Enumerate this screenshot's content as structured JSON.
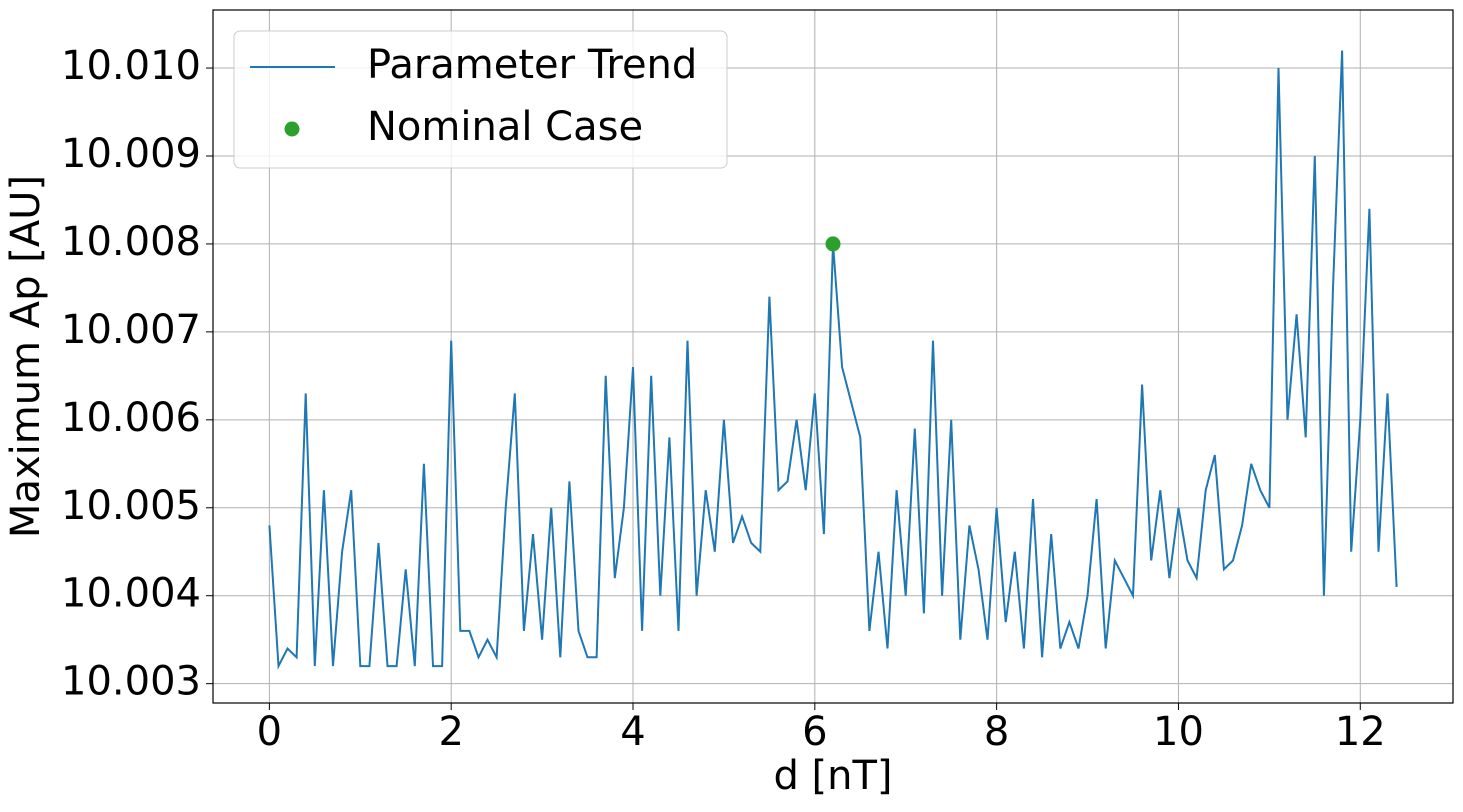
{
  "chart_data": {
    "type": "line",
    "xlabel": "d [nT]",
    "ylabel": "Maximum Ap [AU]",
    "x": [
      0.0,
      0.1,
      0.2,
      0.3,
      0.4,
      0.5,
      0.6,
      0.7,
      0.8,
      0.9,
      1.0,
      1.1,
      1.2,
      1.3,
      1.4,
      1.5,
      1.6,
      1.7,
      1.8,
      1.9,
      2.0,
      2.1,
      2.2,
      2.3,
      2.4,
      2.5,
      2.6,
      2.7,
      2.8,
      2.9,
      3.0,
      3.1,
      3.2,
      3.3,
      3.4,
      3.5,
      3.6,
      3.7,
      3.8,
      3.9,
      4.0,
      4.1,
      4.2,
      4.3,
      4.4,
      4.5,
      4.6,
      4.7,
      4.8,
      4.9,
      5.0,
      5.1,
      5.2,
      5.3,
      5.4,
      5.5,
      5.6,
      5.7,
      5.8,
      5.9,
      6.0,
      6.1,
      6.2,
      6.3,
      6.4,
      6.5,
      6.6,
      6.7,
      6.8,
      6.9,
      7.0,
      7.1,
      7.2,
      7.3,
      7.4,
      7.5,
      7.6,
      7.7,
      7.8,
      7.9,
      8.0,
      8.1,
      8.2,
      8.3,
      8.4,
      8.5,
      8.6,
      8.7,
      8.8,
      8.9,
      9.0,
      9.1,
      9.2,
      9.3,
      9.4,
      9.5,
      9.6,
      9.7,
      9.8,
      9.9,
      10.0,
      10.1,
      10.2,
      10.3,
      10.4,
      10.5,
      10.6,
      10.7,
      10.8,
      10.9,
      11.0,
      11.1,
      11.2,
      11.3,
      11.4,
      11.5,
      11.6,
      11.7,
      11.8,
      11.9,
      12.0,
      12.1,
      12.2,
      12.3,
      12.4
    ],
    "series": [
      {
        "name": "Parameter Trend",
        "color": "#1f77b4",
        "values": [
          10.0048,
          10.0032,
          10.0034,
          10.0033,
          10.0063,
          10.0032,
          10.0052,
          10.0032,
          10.0045,
          10.0052,
          10.0032,
          10.0032,
          10.0046,
          10.0032,
          10.0032,
          10.0043,
          10.0032,
          10.0055,
          10.0032,
          10.0032,
          10.0069,
          10.0036,
          10.0036,
          10.0033,
          10.0035,
          10.0033,
          10.005,
          10.0063,
          10.0036,
          10.0047,
          10.0035,
          10.005,
          10.0033,
          10.0053,
          10.0036,
          10.0033,
          10.0033,
          10.0065,
          10.0042,
          10.005,
          10.0066,
          10.0036,
          10.0065,
          10.004,
          10.0058,
          10.0036,
          10.0069,
          10.004,
          10.0052,
          10.0045,
          10.006,
          10.0046,
          10.0049,
          10.0046,
          10.0045,
          10.0074,
          10.0052,
          10.0053,
          10.006,
          10.0052,
          10.0063,
          10.0047,
          10.008,
          10.0066,
          10.0062,
          10.0058,
          10.0036,
          10.0045,
          10.0034,
          10.0052,
          10.004,
          10.0059,
          10.0038,
          10.0069,
          10.004,
          10.006,
          10.0035,
          10.0048,
          10.0043,
          10.0035,
          10.005,
          10.0037,
          10.0045,
          10.0034,
          10.0051,
          10.0033,
          10.0047,
          10.0034,
          10.0037,
          10.0034,
          10.004,
          10.0051,
          10.0034,
          10.0044,
          10.0042,
          10.004,
          10.0064,
          10.0044,
          10.0052,
          10.0042,
          10.005,
          10.0044,
          10.0042,
          10.0052,
          10.0056,
          10.0043,
          10.0044,
          10.0048,
          10.0055,
          10.0052,
          10.005,
          10.01,
          10.006,
          10.0072,
          10.0058,
          10.009,
          10.004,
          10.0075,
          10.0102,
          10.0045,
          10.006,
          10.0084,
          10.0045,
          10.0063,
          10.0041
        ]
      }
    ],
    "points": [
      {
        "name": "Nominal Case",
        "color": "#2ca02c",
        "x": 6.2,
        "y": 10.008
      }
    ],
    "xlim": [
      -0.62,
      13.02
    ],
    "ylim": [
      10.00278,
      10.01066
    ],
    "xticks": [
      0,
      2,
      4,
      6,
      8,
      10,
      12
    ],
    "yticks": [
      10.003,
      10.004,
      10.005,
      10.006,
      10.007,
      10.008,
      10.009,
      {
        "value": 10.01,
        "label": "10.010"
      }
    ],
    "grid": true,
    "legend": "upper left"
  }
}
